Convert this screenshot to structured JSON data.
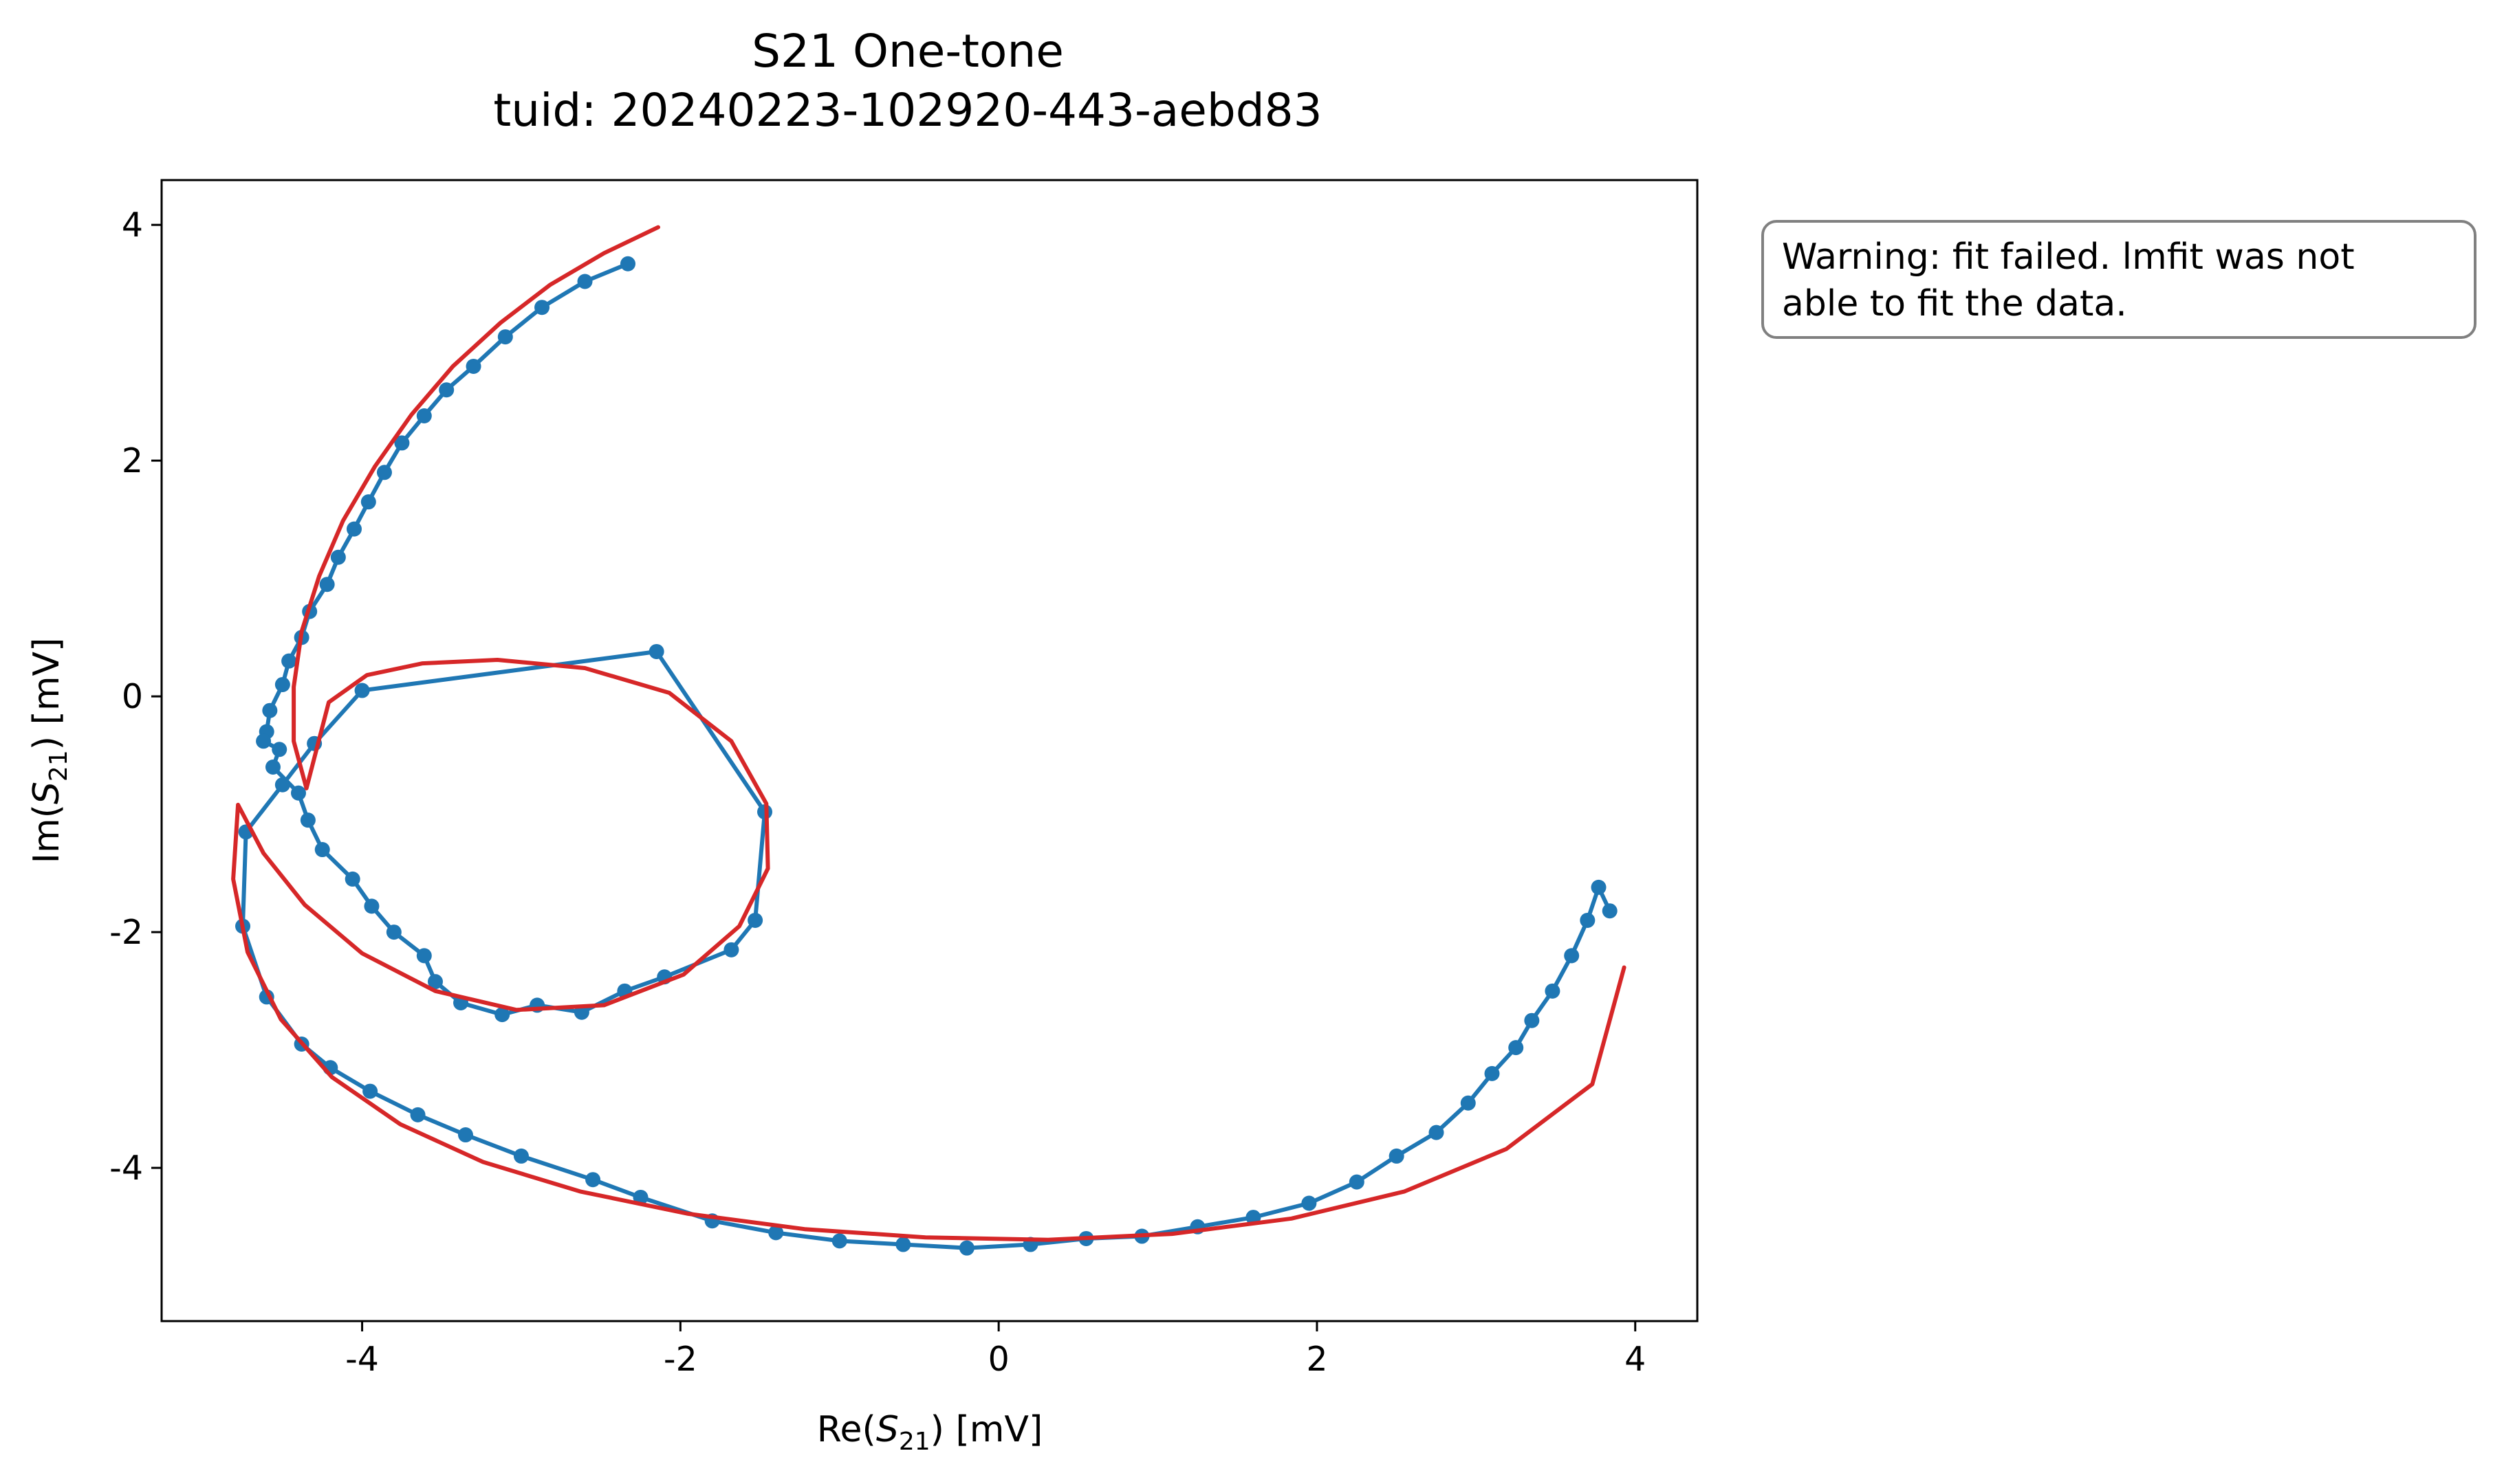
{
  "chart_data": {
    "type": "line",
    "title": "S21 One-tone",
    "subtitle": "tuid: 20240223-102920-443-aebd83",
    "xlabel": {
      "prefix": "Re(",
      "var": "S",
      "sub": "21",
      "suffix": ") [mV]"
    },
    "ylabel": {
      "prefix": "Im(",
      "var": "S",
      "sub": "21",
      "suffix": ") [mV]"
    },
    "xlim": [
      -5.26,
      4.39
    ],
    "ylim": [
      -5.3,
      4.38
    ],
    "xticks": [
      -4,
      -2,
      0,
      2,
      4
    ],
    "xtick_labels": [
      "-4",
      "-2",
      "0",
      "2",
      "4"
    ],
    "yticks": [
      -4,
      -2,
      0,
      2,
      4
    ],
    "ytick_labels": [
      "-4",
      "-2",
      "0",
      "2",
      "4"
    ],
    "grid": false,
    "series": [
      {
        "style": "line-markers",
        "color": "#1f77b4",
        "x": [
          -2.33,
          -2.6,
          -2.87,
          -3.1,
          -3.3,
          -3.47,
          -3.61,
          -3.75,
          -3.86,
          -3.96,
          -4.05,
          -4.15,
          -4.22,
          -4.33,
          -4.38,
          -4.46,
          -4.5,
          -4.58,
          -4.6,
          -4.62,
          -4.52,
          -4.56,
          -4.4,
          -4.34,
          -4.25,
          -4.06,
          -3.94,
          -3.8,
          -3.61,
          -3.54,
          -3.38,
          -3.12,
          -2.9,
          -2.62,
          -2.35,
          -2.1,
          -1.68,
          -1.53,
          -1.47,
          -2.15,
          -4.0,
          -4.3,
          -4.5,
          -4.73,
          -4.75,
          -4.6,
          -4.38,
          -4.2,
          -3.95,
          -3.65,
          -3.35,
          -3.0,
          -2.55,
          -2.25,
          -1.8,
          -1.4,
          -1.0,
          -0.6,
          -0.2,
          0.2,
          0.55,
          0.9,
          1.25,
          1.6,
          1.95,
          2.25,
          2.5,
          2.75,
          2.95,
          3.1,
          3.25,
          3.35,
          3.48,
          3.6,
          3.7,
          3.77,
          3.84
        ],
        "y": [
          3.67,
          3.52,
          3.3,
          3.05,
          2.8,
          2.6,
          2.38,
          2.15,
          1.9,
          1.65,
          1.42,
          1.18,
          0.95,
          0.72,
          0.5,
          0.3,
          0.1,
          -0.12,
          -0.3,
          -0.38,
          -0.45,
          -0.6,
          -0.82,
          -1.05,
          -1.3,
          -1.55,
          -1.78,
          -2.0,
          -2.2,
          -2.42,
          -2.6,
          -2.7,
          -2.62,
          -2.68,
          -2.5,
          -2.38,
          -2.15,
          -1.9,
          -0.98,
          0.38,
          0.05,
          -0.4,
          -0.75,
          -1.15,
          -1.95,
          -2.55,
          -2.95,
          -3.15,
          -3.35,
          -3.55,
          -3.72,
          -3.9,
          -4.1,
          -4.25,
          -4.45,
          -4.55,
          -4.62,
          -4.65,
          -4.68,
          -4.65,
          -4.6,
          -4.58,
          -4.5,
          -4.42,
          -4.3,
          -4.12,
          -3.9,
          -3.7,
          -3.45,
          -3.2,
          -2.98,
          -2.75,
          -2.5,
          -2.2,
          -1.9,
          -1.62,
          -1.82
        ]
      },
      {
        "style": "line",
        "color": "#d62728",
        "x": [
          -2.14,
          -2.48,
          -2.82,
          -3.13,
          -3.43,
          -3.69,
          -3.92,
          -4.12,
          -4.27,
          -4.38,
          -4.43,
          -4.43,
          -4.35,
          -4.21,
          -3.97,
          -3.62,
          -3.15,
          -2.6,
          -2.07,
          -1.68,
          -1.46,
          -1.45,
          -1.63,
          -1.98,
          -2.48,
          -3.03,
          -3.54,
          -4.0,
          -4.36,
          -4.62,
          -4.78,
          -4.81,
          -4.72,
          -4.51,
          -4.19,
          -3.76,
          -3.24,
          -2.63,
          -1.95,
          -1.22,
          -0.46,
          0.31,
          1.09,
          1.84,
          2.55,
          3.19,
          3.73,
          3.93
        ],
        "y": [
          3.98,
          3.76,
          3.49,
          3.17,
          2.8,
          2.39,
          1.95,
          1.49,
          1.02,
          0.55,
          0.08,
          -0.38,
          -0.78,
          -0.05,
          0.18,
          0.28,
          0.31,
          0.24,
          0.03,
          -0.38,
          -0.91,
          -1.46,
          -1.95,
          -2.36,
          -2.62,
          -2.66,
          -2.5,
          -2.18,
          -1.77,
          -1.33,
          -0.92,
          -1.55,
          -2.17,
          -2.74,
          -3.23,
          -3.63,
          -3.95,
          -4.2,
          -4.39,
          -4.52,
          -4.59,
          -4.61,
          -4.56,
          -4.43,
          -4.2,
          -3.84,
          -3.29,
          -2.3
        ]
      }
    ]
  },
  "annotation": {
    "line1": "Warning: fit failed. lmfit was not",
    "line2": "able to fit the data."
  }
}
